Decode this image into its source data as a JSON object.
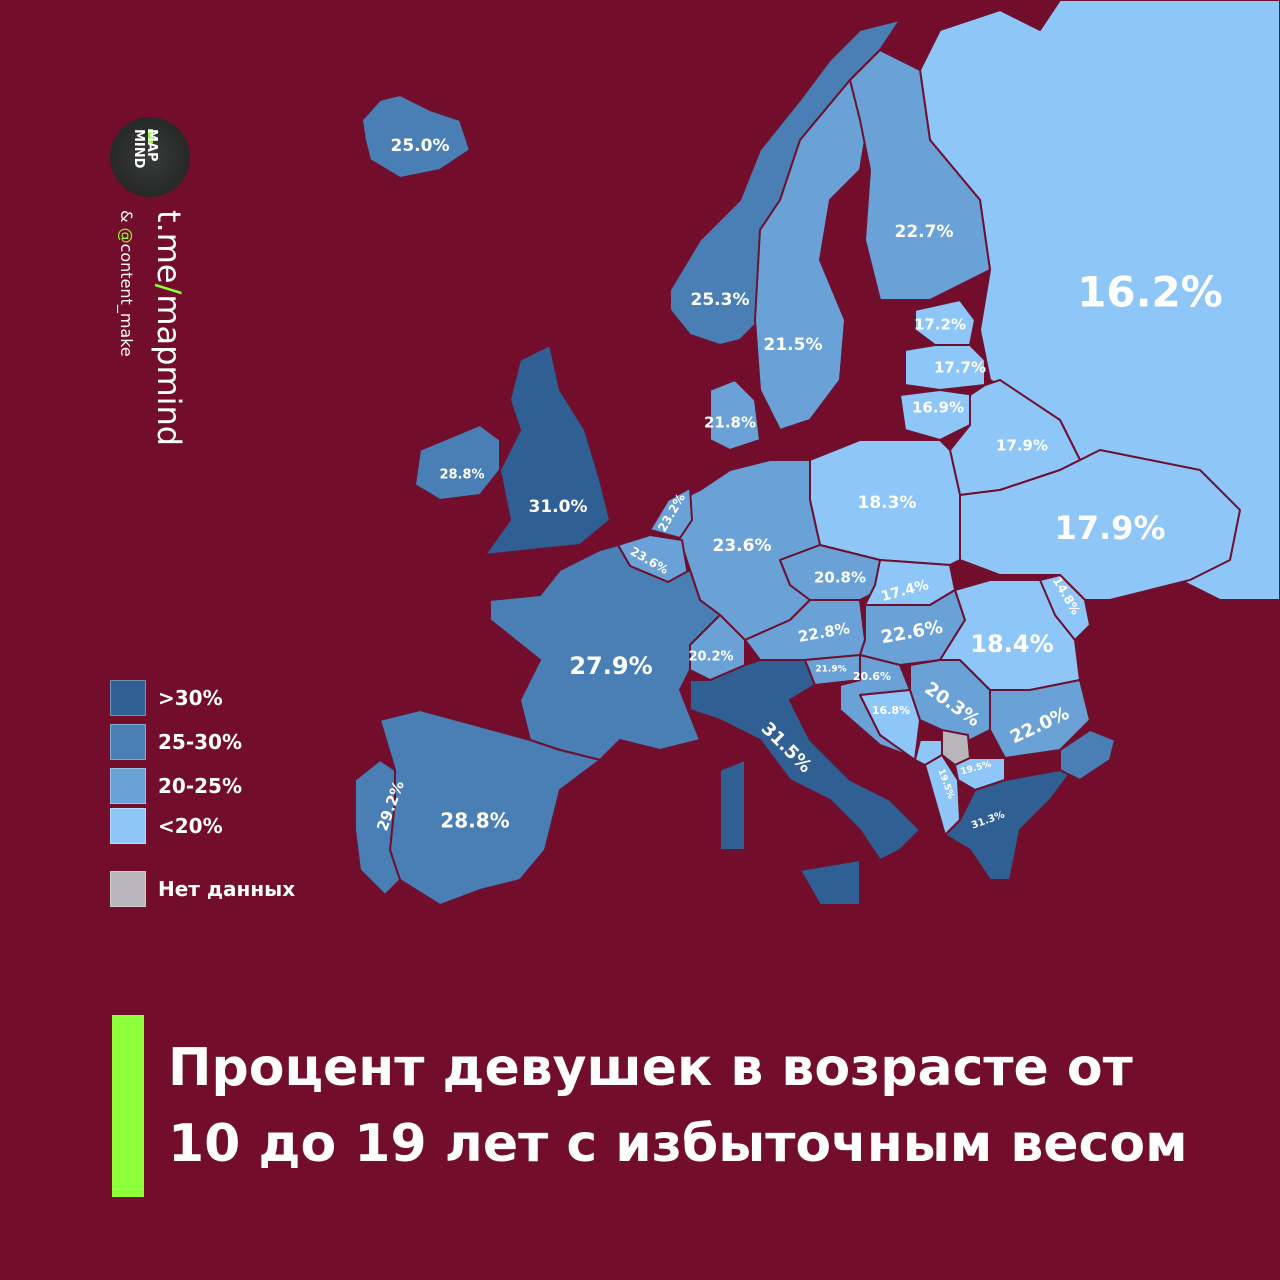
{
  "colors": {
    "background": "#720e2b",
    "accent": "#8cff3a",
    ">30%": "#2f5f93",
    "25-30%": "#4a7fb6",
    "20-25%": "#6aa1d6",
    "<20%": "#8fc6f8",
    "no_data": "#b9b5ba"
  },
  "branding": {
    "logo_text": "MAP MIND",
    "channel_prefix": "t.me",
    "channel_slash": "/",
    "channel_name": "mapmind",
    "credit_prefix": "& ",
    "credit_at": "@",
    "credit_name": "content_make"
  },
  "legend": [
    {
      "label": ">30%",
      "category": ">30%"
    },
    {
      "label": "25-30%",
      "category": "25-30%"
    },
    {
      "label": "20-25%",
      "category": "20-25%"
    },
    {
      "label": "<20%",
      "category": "<20%"
    },
    {
      "label": "Нет данных",
      "category": "no_data"
    }
  ],
  "title": {
    "line1": "Процент девушек в возрасте от",
    "line2": "10 до 19 лет с избыточным весом"
  },
  "regions": {
    "iceland": {
      "value": "25.0%",
      "category": "25-30%"
    },
    "norway": {
      "value": "25.3%",
      "category": "25-30%"
    },
    "sweden": {
      "value": "21.5%",
      "category": "20-25%"
    },
    "finland": {
      "value": "22.7%",
      "category": "20-25%"
    },
    "russia": {
      "value": "16.2%",
      "category": "<20%"
    },
    "estonia": {
      "value": "17.2%",
      "category": "<20%"
    },
    "latvia": {
      "value": "17.7%",
      "category": "<20%"
    },
    "lithuania": {
      "value": "16.9%",
      "category": "<20%"
    },
    "belarus": {
      "value": "17.9%",
      "category": "<20%"
    },
    "ukraine": {
      "value": "17.9%",
      "category": "<20%"
    },
    "moldova": {
      "value": "14.8%",
      "category": "<20%"
    },
    "poland": {
      "value": "18.3%",
      "category": "<20%"
    },
    "germany": {
      "value": "23.6%",
      "category": "20-25%"
    },
    "denmark": {
      "value": "21.8%",
      "category": "20-25%"
    },
    "netherlands": {
      "value": "23.2%",
      "category": "20-25%"
    },
    "belgium": {
      "value": "23.6%",
      "category": "20-25%"
    },
    "uk": {
      "value": "31.0%",
      "category": ">30%"
    },
    "ireland": {
      "value": "28.8%",
      "category": "25-30%"
    },
    "france": {
      "value": "27.9%",
      "category": "25-30%"
    },
    "spain": {
      "value": "28.8%",
      "category": "25-30%"
    },
    "portugal": {
      "value": "29.2%",
      "category": "25-30%"
    },
    "italy": {
      "value": "31.5%",
      "category": ">30%"
    },
    "switzerland": {
      "value": "20.2%",
      "category": "20-25%"
    },
    "austria": {
      "value": "22.8%",
      "category": "20-25%"
    },
    "czechia": {
      "value": "20.8%",
      "category": "20-25%"
    },
    "slovakia": {
      "value": "17.4%",
      "category": "<20%"
    },
    "hungary": {
      "value": "22.6%",
      "category": "20-25%"
    },
    "slovenia": {
      "value": "21.9%",
      "category": "20-25%"
    },
    "croatia": {
      "value": "20.6%",
      "category": "20-25%"
    },
    "bosnia": {
      "value": "16.8%",
      "category": "<20%"
    },
    "serbia": {
      "value": "20.3%",
      "category": "20-25%"
    },
    "romania": {
      "value": "18.4%",
      "category": "<20%"
    },
    "bulgaria": {
      "value": "22.0%",
      "category": "20-25%"
    },
    "kosovo": {
      "category": "no_data"
    },
    "north_macedonia": {
      "value": "19.5%",
      "category": "<20%"
    },
    "albania": {
      "value": "19.5%",
      "category": "<20%"
    },
    "greece": {
      "value": "31.3%",
      "category": ">30%"
    },
    "turkey_europe": {
      "category": "25-30%"
    },
    "montenegro": {
      "category": "<20%"
    }
  }
}
